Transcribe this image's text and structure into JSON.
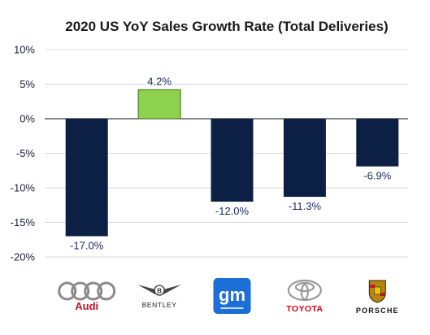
{
  "chart_data": {
    "type": "bar",
    "title": "2020 US YoY Sales Growth Rate (Total Deliveries)",
    "categories": [
      "Audi",
      "Bentley",
      "GM",
      "Toyota",
      "Porsche"
    ],
    "values": [
      -17.0,
      4.2,
      -12.0,
      -11.3,
      -6.9
    ],
    "data_labels": [
      "-17.0%",
      "4.2%",
      "-12.0%",
      "-11.3%",
      "-6.9%"
    ],
    "ylim": [
      -20,
      10
    ],
    "yticks": [
      10,
      5,
      0,
      -5,
      -10,
      -15,
      -20
    ],
    "ytick_labels": [
      "10%",
      "5%",
      "0%",
      "-5%",
      "-10%",
      "-15%",
      "-20%"
    ],
    "grid": true,
    "xlabel": "",
    "ylabel": "",
    "colors": {
      "negative_bar": "#0c1f44",
      "positive_bar": "#8dd14f",
      "positive_bar_border": "#3f6e1c",
      "gridline": "#d9d9d9",
      "zero_line": "#3a3a3a"
    }
  },
  "logos": [
    {
      "icon": "audi-rings-icon",
      "wordmark": "Audi",
      "color": "#c8102e"
    },
    {
      "icon": "bentley-wings-icon",
      "wordmark": "BENTLEY",
      "color": "#222222"
    },
    {
      "icon": "gm-icon",
      "wordmark": "gm",
      "color": "#1b6fd6"
    },
    {
      "icon": "toyota-emblem-icon",
      "wordmark": "TOYOTA",
      "color": "#d0021b"
    },
    {
      "icon": "porsche-crest-icon",
      "wordmark": "PORSCHE",
      "color": "#111111"
    }
  ]
}
